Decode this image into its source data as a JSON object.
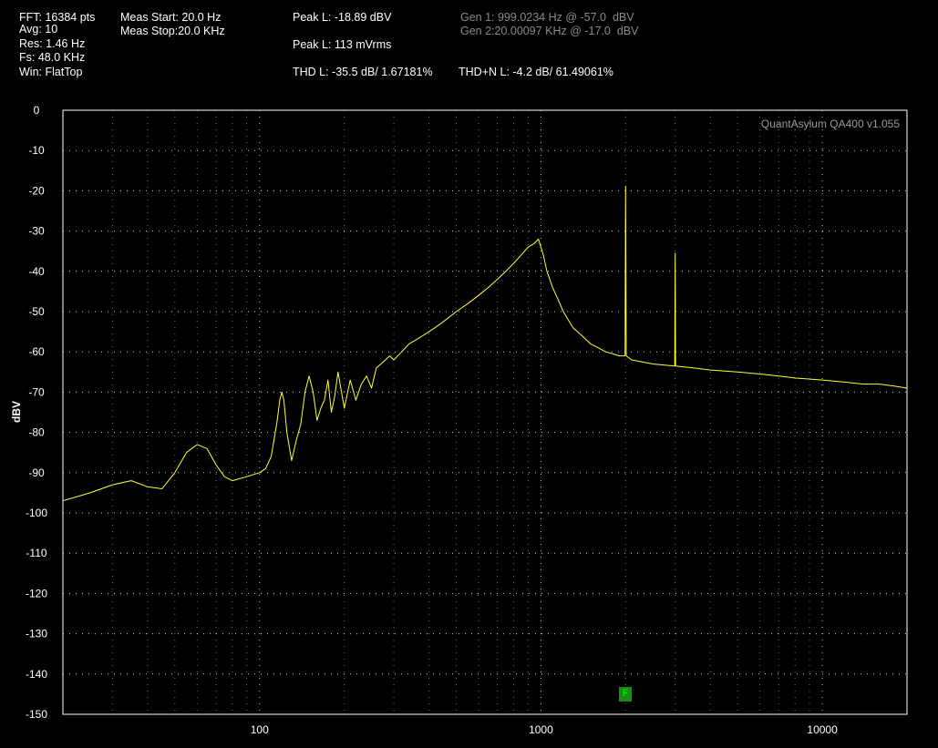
{
  "header": {
    "col1": [
      "FFT: 16384 pts",
      "Avg: 10",
      "Res: 1.46 Hz",
      "Fs: 48.0 KHz",
      "Win: FlatTop"
    ],
    "col2": [
      "Meas Start: 20.0 Hz",
      "Meas Stop:20.0 KHz"
    ],
    "peak_dbv": "Peak L: -18.89 dBV",
    "peak_vrms": "Peak L: 113 mVrms",
    "thd": "THD L: -35.5 dB/ 1.67181%",
    "thdn": "THD+N L: -4.2 dB/ 61.49061%",
    "gen1": "Gen 1: 999.0234 Hz @ -57.0  dBV",
    "gen2": "Gen 2:20.00097 KHz @ -17.0  dBV"
  },
  "watermark": "QuantAsylum QA400 v1.055",
  "marker_label": "F",
  "colors": {
    "trace": "#ffff33",
    "grid": "#ffffff",
    "background": "#000000",
    "marker": "#1a8a1a"
  },
  "chart_data": {
    "type": "line",
    "xscale": "log",
    "xlim": [
      20,
      20000
    ],
    "ylim": [
      -150,
      0
    ],
    "ylabel": "dBV",
    "xlabel": "",
    "yticks": [
      0,
      -10,
      -20,
      -30,
      -40,
      -50,
      -60,
      -70,
      -80,
      -90,
      -100,
      -110,
      -120,
      -130,
      -140,
      -150
    ],
    "xticks": [
      100,
      1000,
      10000
    ],
    "grid": true,
    "series": [
      {
        "x": [
          20,
          25,
          30,
          35,
          40,
          45,
          50,
          55,
          60,
          65,
          70,
          75,
          80,
          90,
          100,
          105,
          110,
          115,
          118,
          120,
          122,
          125,
          130,
          135,
          140,
          145,
          150,
          155,
          160,
          165,
          170,
          175,
          180,
          185,
          190,
          200,
          210,
          220,
          230,
          240,
          250,
          260,
          270,
          280,
          290,
          300,
          320,
          340,
          360,
          380,
          400,
          420,
          440,
          460,
          480,
          500,
          550,
          600,
          650,
          700,
          750,
          800,
          850,
          900,
          950,
          980,
          1000,
          1020,
          1050,
          1100,
          1150,
          1200,
          1300,
          1400,
          1500,
          1600,
          1700,
          1800,
          1900,
          1990,
          2000,
          2010,
          2100,
          2500,
          2990,
          3000,
          3010,
          3500,
          4000,
          5000,
          6000,
          7000,
          8000,
          10000,
          12000,
          14000,
          16000,
          18000,
          20000
        ],
        "y": [
          -97,
          -95,
          -93,
          -92,
          -93.5,
          -94,
          -90,
          -85,
          -83,
          -84,
          -88,
          -91,
          -92,
          -91,
          -90,
          -89,
          -86,
          -78,
          -72,
          -70,
          -72,
          -80,
          -87,
          -82,
          -78,
          -70,
          -66,
          -70,
          -77,
          -74,
          -72,
          -67,
          -75,
          -71,
          -65,
          -74,
          -67,
          -72,
          -68,
          -66,
          -69,
          -64,
          -63,
          -62,
          -61,
          -62,
          -60,
          -58,
          -57,
          -56,
          -55,
          -54,
          -53,
          -52,
          -51,
          -50,
          -48,
          -46,
          -44,
          -42,
          -40,
          -38,
          -36,
          -34,
          -33,
          -32,
          -34,
          -36,
          -40,
          -44,
          -47,
          -50,
          -54,
          -56,
          -58,
          -59,
          -60,
          -60.5,
          -61,
          -61,
          -18.9,
          -61,
          -62,
          -63,
          -63.5,
          -35.5,
          -63.5,
          -64,
          -64.5,
          -65,
          -65.5,
          -66,
          -66.5,
          -67,
          -67.5,
          -68,
          -68,
          -68.5,
          -69
        ]
      }
    ]
  }
}
